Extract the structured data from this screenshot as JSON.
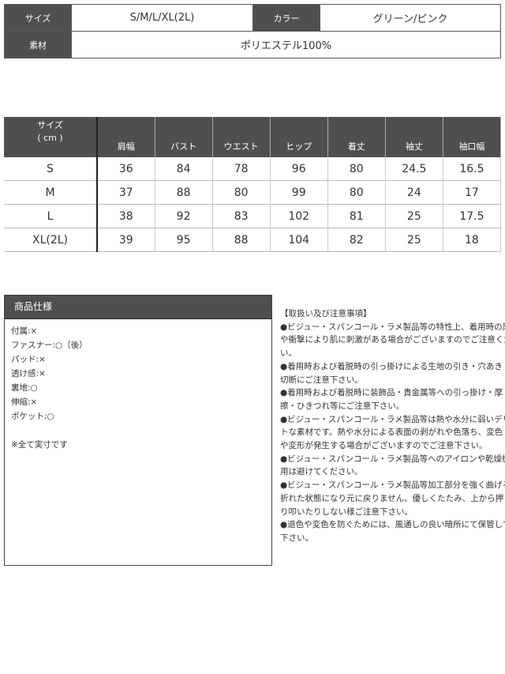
{
  "info": {
    "size_label": "サイズ",
    "size_value": "S/M/L/XL(2L)",
    "color_label": "カラー",
    "color_value": "グリーン/ピンク",
    "material_label": "素材",
    "material_value": "ポリエステル100%"
  },
  "size_table": {
    "header_line1": "サイズ",
    "header_line2": "( cm )",
    "columns": [
      "肩幅",
      "バスト",
      "ウエスト",
      "ヒップ",
      "着丈",
      "袖丈",
      "袖口幅"
    ],
    "rows": [
      {
        "size": "S",
        "values": [
          "36",
          "84",
          "78",
          "96",
          "80",
          "24.5",
          "16.5"
        ]
      },
      {
        "size": "M",
        "values": [
          "37",
          "88",
          "80",
          "99",
          "80",
          "24",
          "17"
        ]
      },
      {
        "size": "L",
        "values": [
          "38",
          "92",
          "83",
          "102",
          "81",
          "25",
          "17.5"
        ]
      },
      {
        "size": "XL(2L)",
        "values": [
          "39",
          "95",
          "88",
          "104",
          "82",
          "25",
          "18"
        ]
      }
    ]
  },
  "spec": {
    "title": "商品仕様",
    "items": [
      "付属:×",
      "ファスナー:○（後）",
      "パッド:×",
      "透け感:×",
      "裏地:○",
      "伸縮:×",
      "ポケット:○"
    ],
    "note": "※全て実寸です"
  },
  "notes": {
    "title": "【取扱い及び注意事項】",
    "lines": [
      "●ビジュー・スパンコール・ラメ製品等の特性上、着用時の摩擦",
      "や衝撃により肌に刺激がある場合がございますのでご注意くださ",
      "い。",
      "●着用時および着脱時の引っ掛けによる生地の引き・穴あき・",
      "切断にご注意下さい。",
      "●着用時および着脱時に装飾品・貴金属等への引っ掛け・摩",
      "擦・ひきつれ等にご注意下さい。",
      "●ビジュー・スパンコール・ラメ製品等は熱や水分に弱いデリケー",
      "トな素材です。熱や水分による表面の剥がれや色落ち、変色",
      "や変形が発生する場合がございますのでご注意下さい。",
      "●ビジュー・スパンコール・ラメ製品等へのアイロンや乾燥機の使",
      "用は避けてください。",
      "●ビジュー・スパンコール・ラメ製品等加工部分を強く曲げると",
      "折れた状態になり元に戻りません。優しくたたみ、上から押さえた",
      "り叩いたりしない様ご注意下さい。",
      "●退色や変色を防ぐためには、風通しの良い暗所にて保管して",
      "下さい。"
    ]
  }
}
